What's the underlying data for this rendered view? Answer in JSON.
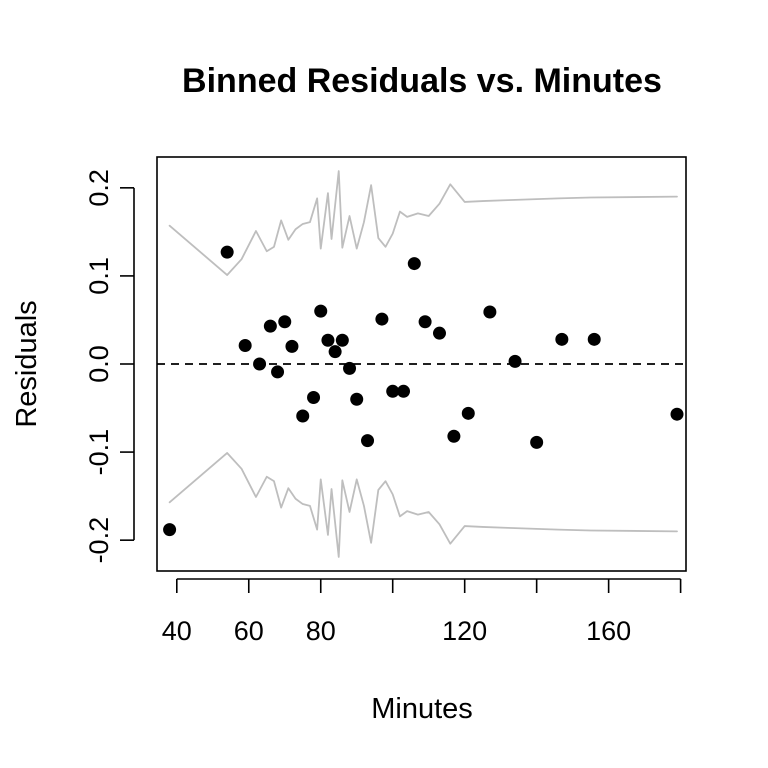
{
  "chart_data": {
    "type": "scatter",
    "title": "Binned Residuals vs. Minutes",
    "xlabel": "Minutes",
    "ylabel": "Residuals",
    "xlim": [
      34.5,
      181.5
    ],
    "ylim": [
      -0.235,
      0.235
    ],
    "x_ticks": [
      40,
      60,
      80,
      100,
      120,
      140,
      160,
      180
    ],
    "x_tick_labels": [
      "40",
      "60",
      "80",
      "",
      "120",
      "",
      "160",
      ""
    ],
    "y_ticks": [
      -0.2,
      -0.1,
      0.0,
      0.1,
      0.2
    ],
    "y_tick_labels": [
      "-0.2",
      "-0.1",
      "0.0",
      "0.1",
      "0.2"
    ],
    "reference_line": {
      "y": 0,
      "style": "dashed"
    },
    "colors": {
      "points": "#000000",
      "bounds": "#bebebe",
      "reference": "#000000"
    },
    "series": [
      {
        "kind": "points",
        "x": [
          38,
          54,
          59,
          63,
          66,
          68,
          70,
          72,
          75,
          78,
          80,
          82,
          84,
          86,
          88,
          90,
          93,
          97,
          100,
          103,
          106,
          109,
          113,
          117,
          121,
          127,
          134,
          140,
          147,
          156,
          179
        ],
        "y": [
          -0.188,
          0.127,
          0.021,
          0.0,
          0.043,
          -0.009,
          0.048,
          0.02,
          -0.059,
          -0.038,
          0.06,
          0.027,
          0.014,
          0.027,
          -0.005,
          -0.04,
          -0.087,
          0.051,
          -0.031,
          -0.031,
          0.114,
          0.048,
          0.035,
          -0.082,
          -0.056,
          0.059,
          0.003,
          -0.089,
          0.028,
          0.028,
          -0.057
        ]
      },
      {
        "kind": "upper-bound",
        "x": [
          38,
          54,
          58,
          62,
          65,
          67,
          69,
          71,
          73,
          75,
          77,
          79,
          80,
          82,
          83,
          85,
          86,
          88,
          90,
          92,
          94,
          96,
          98,
          100,
          102,
          104,
          107,
          110,
          113,
          116,
          120,
          125,
          132,
          139,
          146,
          155,
          179
        ],
        "y": [
          0.157,
          0.101,
          0.119,
          0.151,
          0.128,
          0.133,
          0.163,
          0.141,
          0.153,
          0.159,
          0.161,
          0.188,
          0.131,
          0.194,
          0.142,
          0.219,
          0.132,
          0.168,
          0.131,
          0.161,
          0.203,
          0.143,
          0.133,
          0.148,
          0.173,
          0.167,
          0.171,
          0.168,
          0.182,
          0.204,
          0.184,
          0.185,
          0.186,
          0.187,
          0.188,
          0.189,
          0.19
        ]
      },
      {
        "kind": "lower-bound",
        "x": [
          38,
          54,
          58,
          62,
          65,
          67,
          69,
          71,
          73,
          75,
          77,
          79,
          80,
          82,
          83,
          85,
          86,
          88,
          90,
          92,
          94,
          96,
          98,
          100,
          102,
          104,
          107,
          110,
          113,
          116,
          120,
          125,
          132,
          139,
          146,
          155,
          179
        ],
        "y": [
          -0.157,
          -0.101,
          -0.119,
          -0.151,
          -0.128,
          -0.133,
          -0.163,
          -0.141,
          -0.153,
          -0.159,
          -0.161,
          -0.188,
          -0.131,
          -0.194,
          -0.142,
          -0.219,
          -0.132,
          -0.168,
          -0.131,
          -0.161,
          -0.203,
          -0.143,
          -0.133,
          -0.148,
          -0.173,
          -0.167,
          -0.171,
          -0.168,
          -0.182,
          -0.204,
          -0.184,
          -0.185,
          -0.186,
          -0.187,
          -0.188,
          -0.189,
          -0.19
        ]
      }
    ]
  }
}
